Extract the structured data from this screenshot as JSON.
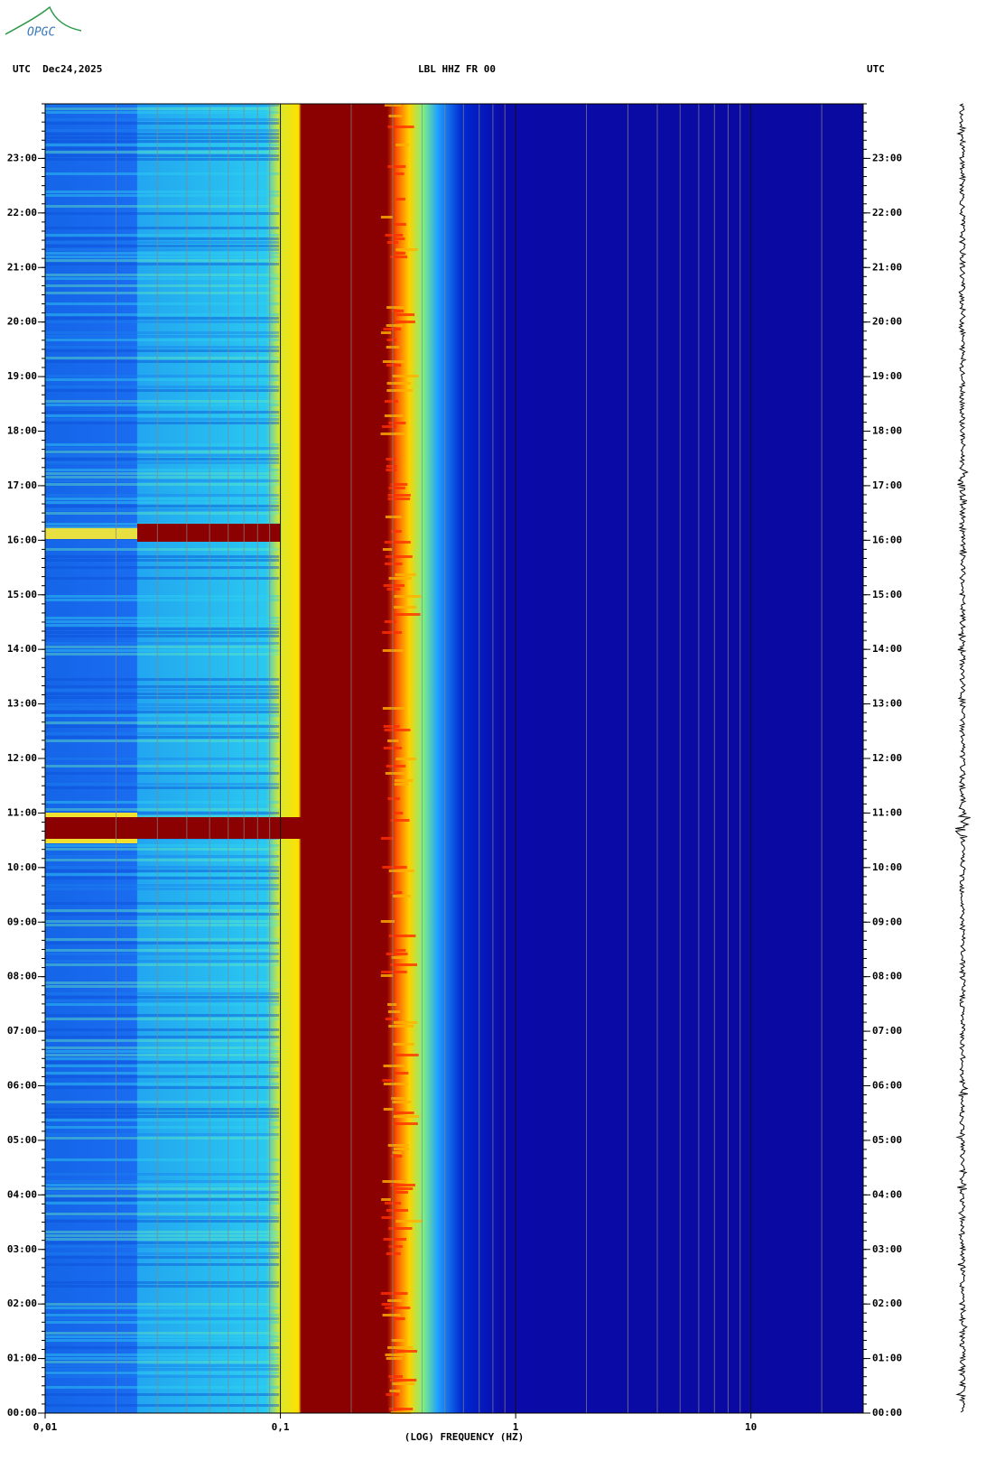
{
  "chart_data": {
    "type": "spectrogram",
    "logo": "OPGC",
    "title_left": "UTC  Dec24,2025",
    "title": "LBL HHZ FR 00",
    "title_right": "UTC",
    "x_label": "(LOG) FREQUENCY (HZ)",
    "x_log": true,
    "xlim": [
      0.01,
      30
    ],
    "xticks": [
      {
        "value": 0.01,
        "label": "0,01"
      },
      {
        "value": 0.1,
        "label": "0,1"
      },
      1,
      10
    ],
    "ylim": [
      0,
      24
    ],
    "yticks": [
      {
        "value": 0,
        "label": "00:00"
      },
      {
        "value": 1,
        "label": "01:00"
      },
      {
        "value": 2,
        "label": "02:00"
      },
      {
        "value": 3,
        "label": "03:00"
      },
      {
        "value": 4,
        "label": "04:00"
      },
      {
        "value": 5,
        "label": "05:00"
      },
      {
        "value": 6,
        "label": "06:00"
      },
      {
        "value": 7,
        "label": "07:00"
      },
      {
        "value": 8,
        "label": "08:00"
      },
      {
        "value": 9,
        "label": "09:00"
      },
      {
        "value": 10,
        "label": "10:00"
      },
      {
        "value": 11,
        "label": "11:00"
      },
      {
        "value": 12,
        "label": "12:00"
      },
      {
        "value": 13,
        "label": "13:00"
      },
      {
        "value": 14,
        "label": "14:00"
      },
      {
        "value": 15,
        "label": "15:00"
      },
      {
        "value": 16,
        "label": "16:00"
      },
      {
        "value": 17,
        "label": "17:00"
      },
      {
        "value": 18,
        "label": "18:00"
      },
      {
        "value": 19,
        "label": "19:00"
      },
      {
        "value": 20,
        "label": "20:00"
      },
      {
        "value": 21,
        "label": "21:00"
      },
      {
        "value": 22,
        "label": "22:00"
      },
      {
        "value": 23,
        "label": "23:00"
      }
    ],
    "grid": true
  }
}
